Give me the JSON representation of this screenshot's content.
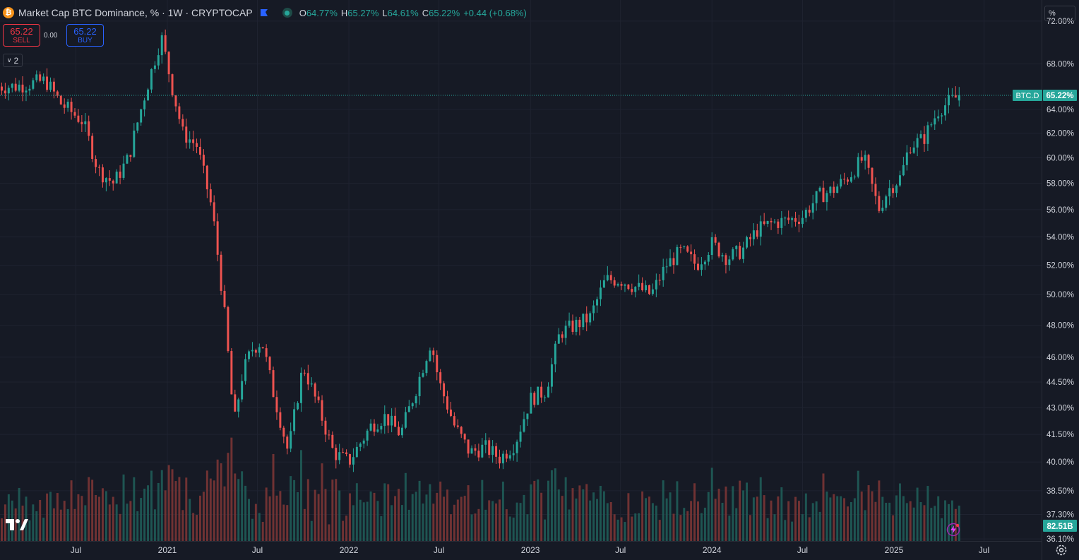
{
  "header": {
    "badge": "₿",
    "title": "Market Cap BTC Dominance, % · 1W · CRYPTOCAP",
    "ohlc": [
      {
        "k": "O",
        "v": "64.77%"
      },
      {
        "k": "H",
        "v": "65.27%"
      },
      {
        "k": "L",
        "v": "64.61%"
      },
      {
        "k": "C",
        "v": "65.22%"
      },
      {
        "k": "",
        "v": "+0.44 (+0.68%)"
      }
    ]
  },
  "trade": {
    "sell_price": "65.22",
    "sell_label": "SELL",
    "spread": "0.00",
    "buy_price": "65.22",
    "buy_label": "BUY"
  },
  "indicators_toggle": "2",
  "scale_mode": "%",
  "price_tag": {
    "symbol": "BTC.D",
    "value": "65.22%"
  },
  "volume_tag": "82.51B",
  "colors": {
    "bg": "#161a25",
    "up": "#26a69a",
    "down": "#ef5350",
    "grid": "#1f2330",
    "axis_text": "#d1d4dc"
  },
  "icons": {
    "logo": "tradingview-logo-icon",
    "flag": "flag-icon",
    "status": "market-status-dot-icon",
    "lightning": "lightning-icon",
    "settings": "gear-icon"
  },
  "chart_data": {
    "type": "candlestick",
    "series_name": "BTC.D",
    "y_scale": "log",
    "y_ticks": [
      "72.00%",
      "68.00%",
      "64.00%",
      "62.00%",
      "60.00%",
      "58.00%",
      "56.00%",
      "54.00%",
      "52.00%",
      "50.00%",
      "48.00%",
      "46.00%",
      "44.50%",
      "43.00%",
      "41.50%",
      "40.00%",
      "38.50%",
      "37.30%",
      "36.10%"
    ],
    "x_ticks": [
      "Jul",
      "2021",
      "Jul",
      "2022",
      "Jul",
      "2023",
      "Jul",
      "2024",
      "Jul",
      "2025",
      "Jul"
    ],
    "last_close": 65.22,
    "anchors": [
      [
        "2020-03-01",
        66.0
      ],
      [
        "2020-05-01",
        66.5
      ],
      [
        "2020-06-01",
        64.5
      ],
      [
        "2020-07-15",
        63.0
      ],
      [
        "2020-08-15",
        59.0
      ],
      [
        "2020-09-15",
        58.0
      ],
      [
        "2020-10-15",
        60.0
      ],
      [
        "2020-11-15",
        65.0
      ],
      [
        "2020-12-20",
        70.5
      ],
      [
        "2021-01-10",
        66.0
      ],
      [
        "2021-02-01",
        62.0
      ],
      [
        "2021-03-01",
        61.0
      ],
      [
        "2021-04-01",
        56.0
      ],
      [
        "2021-04-25",
        49.0
      ],
      [
        "2021-05-15",
        42.0
      ],
      [
        "2021-06-01",
        45.0
      ],
      [
        "2021-06-20",
        46.5
      ],
      [
        "2021-07-10",
        47.0
      ],
      [
        "2021-08-01",
        44.0
      ],
      [
        "2021-09-01",
        40.5
      ],
      [
        "2021-10-01",
        45.5
      ],
      [
        "2021-11-01",
        43.0
      ],
      [
        "2021-12-01",
        40.5
      ],
      [
        "2022-01-01",
        40.0
      ],
      [
        "2022-02-15",
        42.0
      ],
      [
        "2022-03-15",
        42.5
      ],
      [
        "2022-04-15",
        41.5
      ],
      [
        "2022-05-15",
        44.0
      ],
      [
        "2022-06-15",
        47.0
      ],
      [
        "2022-07-01",
        44.5
      ],
      [
        "2022-08-01",
        42.0
      ],
      [
        "2022-09-01",
        40.5
      ],
      [
        "2022-10-01",
        40.8
      ],
      [
        "2022-11-01",
        40.2
      ],
      [
        "2022-12-01",
        41.0
      ],
      [
        "2023-01-01",
        43.5
      ],
      [
        "2023-02-01",
        44.0
      ],
      [
        "2023-03-01",
        47.5
      ],
      [
        "2023-04-01",
        48.0
      ],
      [
        "2023-05-01",
        48.5
      ],
      [
        "2023-06-01",
        51.0
      ],
      [
        "2023-07-01",
        51.0
      ],
      [
        "2023-08-01",
        50.5
      ],
      [
        "2023-09-01",
        50.0
      ],
      [
        "2023-10-01",
        52.0
      ],
      [
        "2023-11-01",
        53.0
      ],
      [
        "2023-12-01",
        52.0
      ],
      [
        "2024-01-01",
        53.5
      ],
      [
        "2024-02-01",
        52.5
      ],
      [
        "2024-03-01",
        53.0
      ],
      [
        "2024-04-01",
        54.5
      ],
      [
        "2024-05-01",
        55.0
      ],
      [
        "2024-06-01",
        55.2
      ],
      [
        "2024-07-01",
        55.5
      ],
      [
        "2024-08-01",
        57.0
      ],
      [
        "2024-09-01",
        57.5
      ],
      [
        "2024-10-01",
        58.5
      ],
      [
        "2024-11-01",
        60.0
      ],
      [
        "2024-12-01",
        56.0
      ],
      [
        "2024-12-20",
        57.5
      ],
      [
        "2025-01-15",
        58.5
      ],
      [
        "2025-02-01",
        61.0
      ],
      [
        "2025-03-01",
        61.5
      ],
      [
        "2025-04-01",
        64.0
      ],
      [
        "2025-05-12",
        65.22
      ]
    ]
  }
}
